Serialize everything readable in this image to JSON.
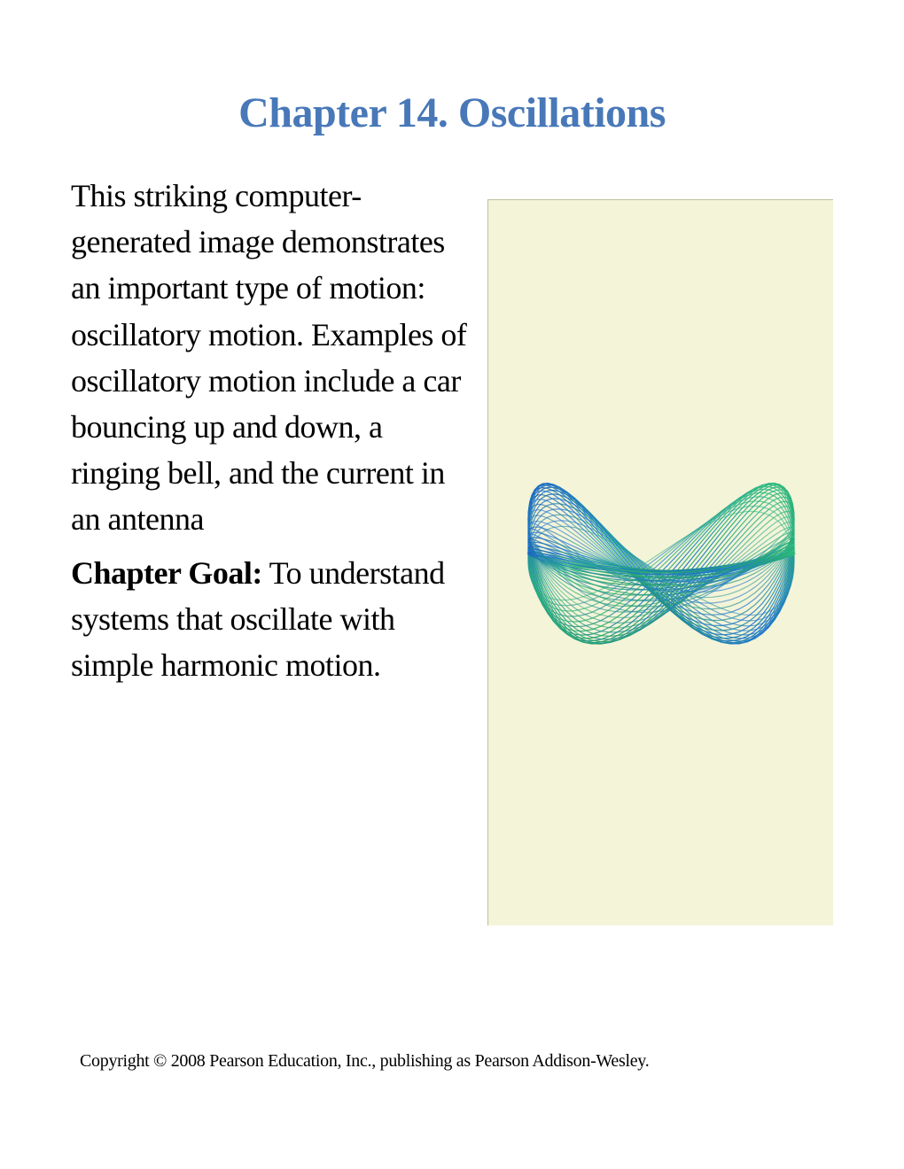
{
  "title": "Chapter 14. Oscillations",
  "paragraph1": "This striking computer-generated image demonstrates an important type of motion: oscillatory motion. Examples of oscillatory motion include a car bouncing up and down, a ringing bell, and the current in an antenna",
  "goalLabel": "Chapter Goal:",
  "goalText": " To understand systems that oscillate with simple harmonic motion.",
  "copyright": "Copyright © 2008 Pearson Education, Inc.,  publishing as Pearson Addison-Wesley.",
  "colors": {
    "titleColor": "#4878b8",
    "textColor": "#000000",
    "imageBg": "#f4f4d8",
    "imageBorder": "#c0c0a0",
    "pageBg": "#ffffff"
  },
  "oscillationGraphic": {
    "type": "lissajous-wireframe",
    "colorStops": [
      "#1a5fb4",
      "#2ec27e",
      "#26a269",
      "#1c71d8"
    ],
    "lineCount": 40,
    "strokeWidth": 1.2
  }
}
